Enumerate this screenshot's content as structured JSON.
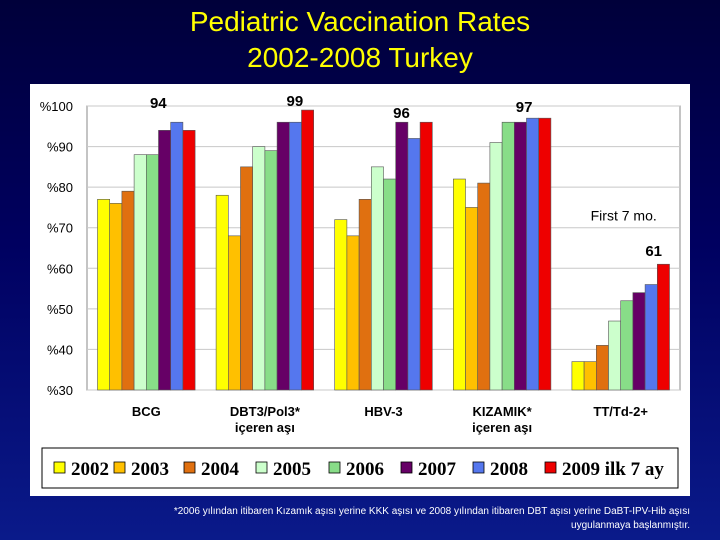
{
  "title": {
    "line1": "Pediatric Vaccination Rates",
    "line2": "2002-2008 Turkey"
  },
  "chart_data": {
    "type": "bar",
    "categories": [
      "BCG",
      "DBT3/Pol3*\niçeren aşı",
      "HBV-3",
      "KIZAMIK*\niçeren aşı",
      "TT/Td-2+"
    ],
    "ylim": [
      30,
      100
    ],
    "yticks": [
      30,
      40,
      50,
      60,
      70,
      80,
      90,
      100
    ],
    "ytick_labels": [
      "%30",
      "%40",
      "%50",
      "%60",
      "%70",
      "%80",
      "%90",
      "%100"
    ],
    "grid": true,
    "legend_position": "bottom",
    "series": [
      {
        "name": "2002",
        "color": "#ffff00",
        "values": [
          77,
          78,
          72,
          82,
          37
        ]
      },
      {
        "name": "2003",
        "color": "#ffc000",
        "values": [
          76,
          68,
          68,
          75,
          37
        ]
      },
      {
        "name": "2004",
        "color": "#e07010",
        "values": [
          79,
          85,
          77,
          81,
          41
        ]
      },
      {
        "name": "2005",
        "color": "#ccffcc",
        "values": [
          88,
          90,
          85,
          91,
          47
        ]
      },
      {
        "name": "2006",
        "color": "#88dd88",
        "values": [
          88,
          89,
          82,
          96,
          52
        ]
      },
      {
        "name": "2007",
        "color": "#660066",
        "values": [
          94,
          96,
          96,
          96,
          54
        ]
      },
      {
        "name": "2008",
        "color": "#5577ee",
        "values": [
          96,
          96,
          92,
          97,
          56
        ]
      },
      {
        "name": "2009 ilk 7 ay",
        "color": "#ee0000",
        "values": [
          94,
          99,
          96,
          97,
          61
        ]
      }
    ],
    "annotations": [
      {
        "text": "94",
        "category": 0
      },
      {
        "text": "99",
        "category": 1
      },
      {
        "text": "96",
        "category": 2
      },
      {
        "text": "97",
        "category": 3
      },
      {
        "text": "61",
        "category": 4
      },
      {
        "text": "First 7 mo.",
        "category": 4
      }
    ]
  },
  "footnote": {
    "line1": "*2006 yılından itibaren Kızamık aşısı yerine KKK aşısı ve 2008 yılından itibaren DBT aşısı yerine DaBT-IPV-Hib aşısı",
    "line2": "uygulanmaya başlanmıştır."
  }
}
